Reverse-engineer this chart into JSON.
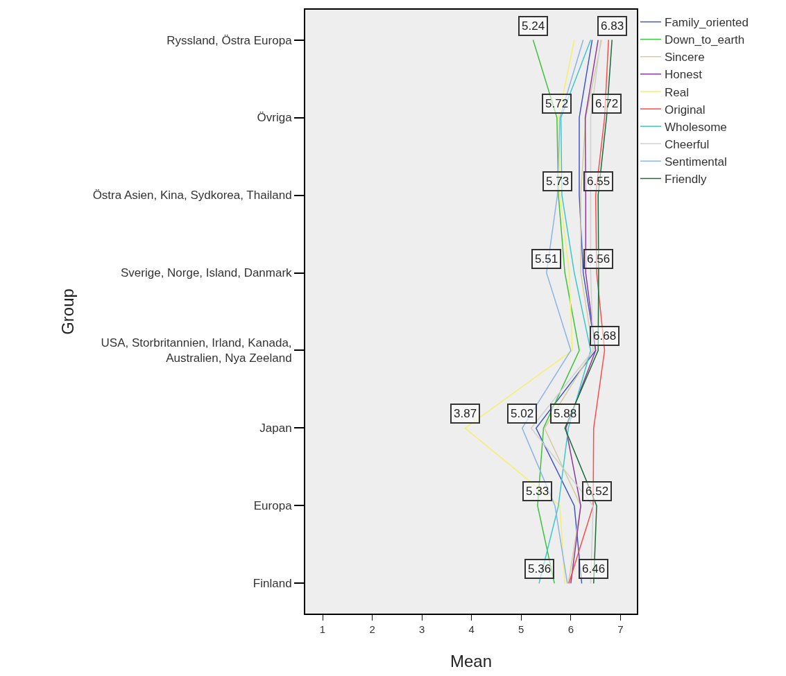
{
  "chart_data": {
    "type": "line",
    "orientation": "horizontal",
    "xlabel": "Mean",
    "ylabel": "Group",
    "categories": [
      "Ryssland, Östra Europa",
      "Övriga",
      "Östra Asien, Kina, Sydkorea, Thailand",
      "Sverige, Norge, Island, Danmark",
      "USA, Storbritannien, Irland, Kanada,\nAustralien, Nya Zeeland",
      "Japan",
      "Europa",
      "Finland"
    ],
    "xlim": [
      0.65,
      7.33
    ],
    "xticks": [
      1,
      2,
      3,
      4,
      5,
      6,
      7
    ],
    "grid": false,
    "legend": "top right",
    "line_style": "solid",
    "series": [
      {
        "name": "Family_oriented",
        "color": "#4055c8",
        "values": [
          6.43,
          6.17,
          6.17,
          6.25,
          6.5,
          5.3,
          6.07,
          6.22
        ]
      },
      {
        "name": "Down_to_earth",
        "color": "#3cc23c",
        "values": [
          5.24,
          5.72,
          5.75,
          5.88,
          6.17,
          5.45,
          5.33,
          5.67
        ],
        "value_labels": [
          "5.24",
          "5.72",
          null,
          null,
          null,
          null,
          "5.33",
          null
        ]
      },
      {
        "name": "Sincere",
        "color": "#d2cc9a",
        "values": [
          6.62,
          6.3,
          6.2,
          6.2,
          6.45,
          5.47,
          6.2,
          5.95
        ]
      },
      {
        "name": "Honest",
        "color": "#8b3a9a",
        "values": [
          6.55,
          6.29,
          6.3,
          6.3,
          6.5,
          5.9,
          6.2,
          6.0
        ]
      },
      {
        "name": "Real",
        "color": "#f4f06a",
        "values": [
          6.07,
          5.75,
          5.78,
          5.97,
          6.03,
          3.87,
          5.78,
          5.88
        ],
        "value_labels": [
          null,
          null,
          null,
          null,
          null,
          "3.87",
          null,
          null
        ]
      },
      {
        "name": "Original",
        "color": "#ff4a4a",
        "values": [
          6.76,
          6.68,
          6.5,
          6.52,
          6.68,
          6.46,
          6.45,
          5.96
        ],
        "value_labels": [
          null,
          null,
          null,
          null,
          "6.68",
          null,
          null,
          null
        ]
      },
      {
        "name": "Wholesome",
        "color": "#3cc8c8",
        "values": [
          6.4,
          5.8,
          5.82,
          6.07,
          6.4,
          5.95,
          5.75,
          5.36
        ],
        "value_labels": [
          null,
          null,
          null,
          null,
          null,
          null,
          null,
          "5.36"
        ]
      },
      {
        "name": "Cheerful",
        "color": "#d0d0d0",
        "values": [
          6.6,
          6.4,
          6.4,
          6.4,
          6.45,
          5.2,
          6.45,
          6.4
        ]
      },
      {
        "name": "Sentimental",
        "color": "#8ab4e8",
        "values": [
          6.25,
          5.78,
          5.73,
          5.51,
          6.0,
          5.02,
          5.68,
          5.93
        ],
        "value_labels": [
          null,
          null,
          "5.73",
          "5.51",
          null,
          "5.02",
          null,
          null
        ]
      },
      {
        "name": "Friendly",
        "color": "#1a6a3a",
        "values": [
          6.83,
          6.72,
          6.55,
          6.56,
          6.55,
          5.88,
          6.52,
          6.46
        ],
        "value_labels": [
          "6.83",
          "6.72",
          "6.55",
          "6.56",
          null,
          "5.88",
          "6.52",
          "6.46"
        ]
      }
    ]
  }
}
